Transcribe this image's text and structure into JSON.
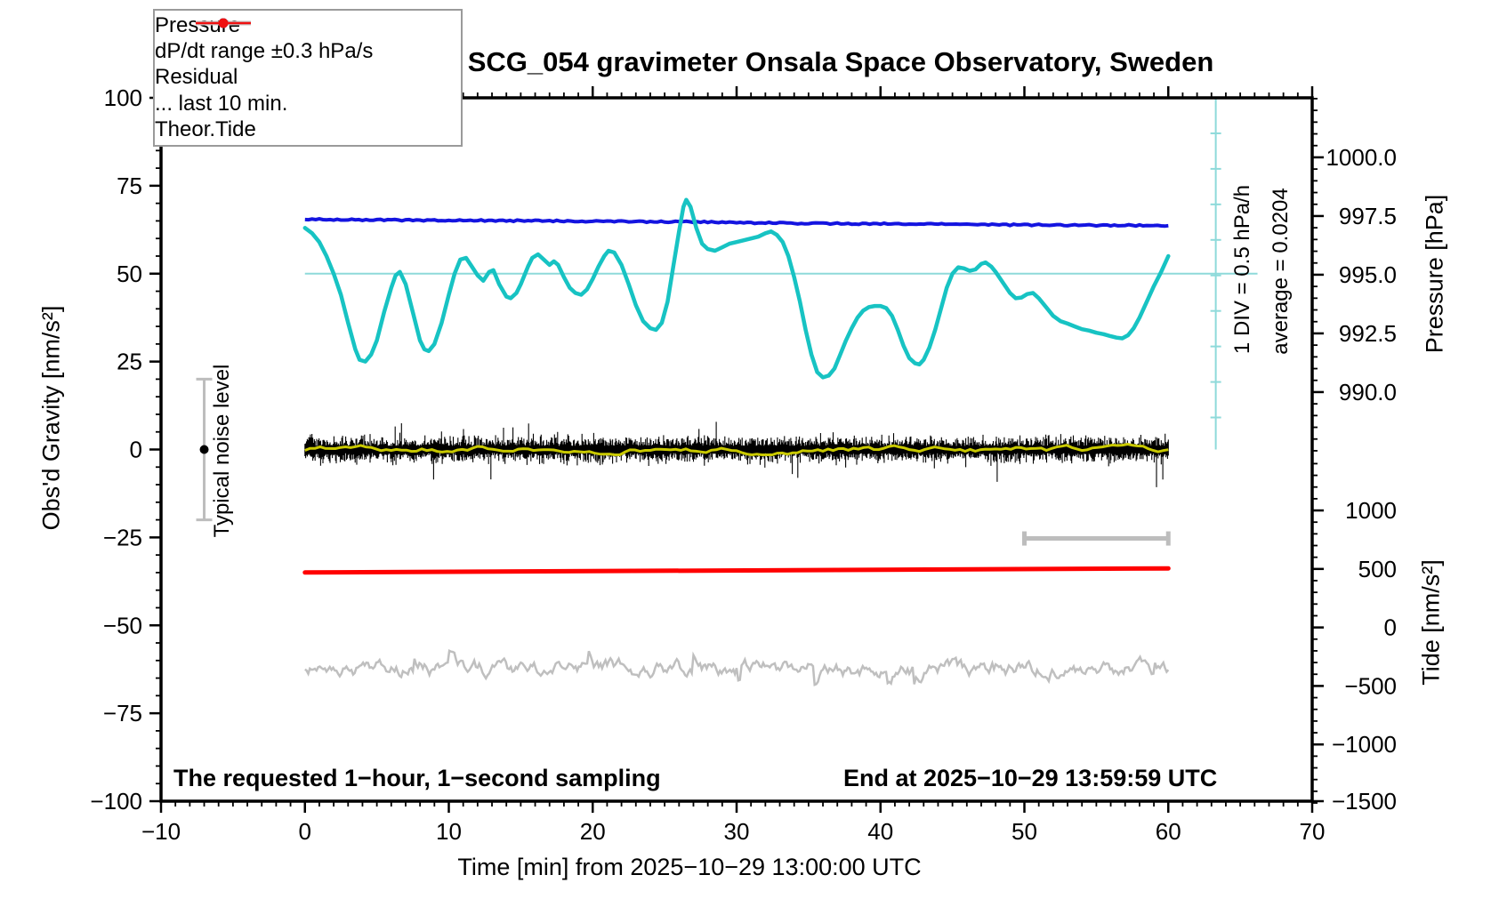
{
  "title": "SCG_054 gravimeter Onsala Space Observatory, Sweden",
  "annotations": {
    "note_left": "The requested 1−hour, 1−second sampling",
    "note_right": "End at 2025−10−29 13:59:59 UTC",
    "noise_bar_label": "Typical noise level",
    "div_label": "1 DIV = 0.5 hPa/h",
    "avg_label": "average = 0.0204"
  },
  "legend": {
    "entries": [
      {
        "label": "Pressure",
        "color": "#1a1ae8",
        "marker": true,
        "weight": 2.5
      },
      {
        "label": "dP/dt range ±0.3 hPa/s",
        "color": "#10c5c5",
        "marker": true,
        "weight": 2.5
      },
      {
        "label": "Residual",
        "color": "#000000",
        "marker": false,
        "weight": 4.5
      },
      {
        "label": "... last 10 min.",
        "color": "#c6c6c6",
        "marker": false,
        "weight": 5
      },
      {
        "label": "Theor.Tide",
        "color": "#f01010",
        "marker": true,
        "weight": 2.5
      }
    ]
  },
  "chart_data": {
    "type": "line",
    "x_axis": {
      "label": "Time [min] from 2025−10−29 13:00:00 UTC",
      "min": -10,
      "max": 70,
      "major_step": 10,
      "minor_step": 1
    },
    "y_left": {
      "label": "Obs'd Gravity [nm/s²]",
      "min": -100,
      "max": 100,
      "major_step": 25,
      "minor_step": 5
    },
    "y_right_pressure": {
      "label": "Pressure [hPa]",
      "tick_labels": [
        1000.0,
        997.5,
        995.0,
        992.5,
        990.0
      ],
      "minor_step": 0.5,
      "gravity_at_995": 49.7,
      "gravity_units_per_hPa": 6.675
    },
    "y_right_tide": {
      "label": "Tide [nm/s²]",
      "tick_labels": [
        1000,
        500,
        0,
        -500,
        -1000,
        -1500
      ],
      "minor_step": 100,
      "gravity_at_zero": -50.6,
      "gravity_units_per_tide_unit": 0.03327
    },
    "series": [
      {
        "name": "pressure",
        "axis": "pressure",
        "color": "#1414e0",
        "width": 4,
        "points": [
          [
            0,
            997.36
          ],
          [
            3,
            997.34
          ],
          [
            6,
            997.33
          ],
          [
            9,
            997.32
          ],
          [
            12,
            997.31
          ],
          [
            15,
            997.3
          ],
          [
            18,
            997.29
          ],
          [
            21,
            997.27
          ],
          [
            24,
            997.26
          ],
          [
            27,
            997.25
          ],
          [
            30,
            997.22
          ],
          [
            33,
            997.2
          ],
          [
            36,
            997.18
          ],
          [
            39,
            997.17
          ],
          [
            42,
            997.16
          ],
          [
            45,
            997.15
          ],
          [
            48,
            997.13
          ],
          [
            51,
            997.12
          ],
          [
            54,
            997.11
          ],
          [
            57,
            997.1
          ],
          [
            60,
            997.09
          ]
        ]
      },
      {
        "name": "dpdt",
        "axis": "gravity",
        "color": "#17c3c3",
        "width": 4.5,
        "note": "dP/dt plotted on left-axis units; centerline 50 = 0, legend range ±0.3 hPa/s",
        "points": [
          [
            0,
            63
          ],
          [
            0.5,
            61.5
          ],
          [
            1,
            59
          ],
          [
            1.5,
            55
          ],
          [
            2,
            50
          ],
          [
            2.5,
            44
          ],
          [
            3,
            36
          ],
          [
            3.5,
            28.5
          ],
          [
            3.8,
            25.5
          ],
          [
            4.2,
            25
          ],
          [
            4.6,
            27
          ],
          [
            5,
            31
          ],
          [
            5.5,
            39
          ],
          [
            6,
            46
          ],
          [
            6.3,
            49.5
          ],
          [
            6.6,
            50.5
          ],
          [
            7,
            47
          ],
          [
            7.5,
            39
          ],
          [
            8,
            31
          ],
          [
            8.3,
            28.5
          ],
          [
            8.6,
            28
          ],
          [
            9,
            30
          ],
          [
            9.5,
            36
          ],
          [
            10,
            44
          ],
          [
            10.4,
            50
          ],
          [
            10.8,
            54
          ],
          [
            11.2,
            54.5
          ],
          [
            11.6,
            52
          ],
          [
            12,
            49.5
          ],
          [
            12.4,
            48
          ],
          [
            12.8,
            50.5
          ],
          [
            13.1,
            51
          ],
          [
            13.5,
            47
          ],
          [
            14,
            43.5
          ],
          [
            14.3,
            43
          ],
          [
            14.7,
            44.5
          ],
          [
            15,
            47
          ],
          [
            15.5,
            52
          ],
          [
            15.8,
            54.5
          ],
          [
            16.2,
            55.5
          ],
          [
            16.6,
            54
          ],
          [
            17,
            52.5
          ],
          [
            17.3,
            53.5
          ],
          [
            17.6,
            52.5
          ],
          [
            18,
            49
          ],
          [
            18.4,
            46
          ],
          [
            18.8,
            44.5
          ],
          [
            19.2,
            44
          ],
          [
            19.6,
            45.5
          ],
          [
            20,
            48.5
          ],
          [
            20.4,
            52
          ],
          [
            20.8,
            55
          ],
          [
            21.1,
            56.5
          ],
          [
            21.5,
            56
          ],
          [
            22,
            52.5
          ],
          [
            22.5,
            47
          ],
          [
            23,
            41
          ],
          [
            23.5,
            36.5
          ],
          [
            24,
            34.5
          ],
          [
            24.4,
            34
          ],
          [
            24.8,
            36
          ],
          [
            25.2,
            42
          ],
          [
            25.6,
            52
          ],
          [
            26,
            62
          ],
          [
            26.3,
            69
          ],
          [
            26.5,
            71
          ],
          [
            26.8,
            69
          ],
          [
            27.2,
            63
          ],
          [
            27.6,
            58.5
          ],
          [
            28,
            57
          ],
          [
            28.5,
            56.5
          ],
          [
            29,
            57.5
          ],
          [
            29.5,
            58.5
          ],
          [
            30,
            59
          ],
          [
            30.5,
            59.5
          ],
          [
            31,
            60
          ],
          [
            31.5,
            60.5
          ],
          [
            32,
            61.5
          ],
          [
            32.4,
            62
          ],
          [
            32.8,
            61
          ],
          [
            33.2,
            59
          ],
          [
            33.6,
            55
          ],
          [
            34,
            49
          ],
          [
            34.4,
            42
          ],
          [
            34.8,
            34
          ],
          [
            35.2,
            27
          ],
          [
            35.6,
            22
          ],
          [
            36,
            20.5
          ],
          [
            36.4,
            21
          ],
          [
            36.8,
            23
          ],
          [
            37.2,
            27
          ],
          [
            37.6,
            31
          ],
          [
            38,
            34.5
          ],
          [
            38.4,
            37.5
          ],
          [
            38.8,
            39.5
          ],
          [
            39.2,
            40.5
          ],
          [
            39.6,
            40.8
          ],
          [
            40,
            40.8
          ],
          [
            40.4,
            40.2
          ],
          [
            40.8,
            38
          ],
          [
            41.2,
            34
          ],
          [
            41.6,
            29.5
          ],
          [
            42,
            26
          ],
          [
            42.4,
            24.5
          ],
          [
            42.7,
            24.2
          ],
          [
            43,
            25.5
          ],
          [
            43.4,
            29
          ],
          [
            43.8,
            34
          ],
          [
            44.2,
            40
          ],
          [
            44.6,
            46
          ],
          [
            45,
            50
          ],
          [
            45.4,
            51.8
          ],
          [
            45.8,
            51.5
          ],
          [
            46.2,
            50.8
          ],
          [
            46.6,
            51.2
          ],
          [
            47,
            52.8
          ],
          [
            47.3,
            53.2
          ],
          [
            47.7,
            52
          ],
          [
            48,
            50.5
          ],
          [
            48.5,
            47.5
          ],
          [
            49,
            44.5
          ],
          [
            49.4,
            43
          ],
          [
            49.8,
            43.2
          ],
          [
            50.2,
            44.2
          ],
          [
            50.6,
            44.5
          ],
          [
            51,
            43
          ],
          [
            51.5,
            40.5
          ],
          [
            52,
            38
          ],
          [
            52.5,
            36.5
          ],
          [
            53,
            35.8
          ],
          [
            53.5,
            35
          ],
          [
            54,
            34.2
          ],
          [
            54.5,
            33.8
          ],
          [
            55,
            33.2
          ],
          [
            55.5,
            32.8
          ],
          [
            56,
            32.2
          ],
          [
            56.4,
            31.8
          ],
          [
            56.8,
            31.6
          ],
          [
            57.2,
            32.5
          ],
          [
            57.6,
            34.5
          ],
          [
            58,
            37.5
          ],
          [
            58.5,
            42
          ],
          [
            59,
            46.5
          ],
          [
            59.5,
            50.5
          ],
          [
            60,
            55
          ]
        ]
      },
      {
        "name": "residual",
        "axis": "gravity",
        "color": "#000000",
        "width": 1,
        "noise": {
          "t_start": 0,
          "t_end": 60,
          "center": 0,
          "typical_amplitude": 4,
          "spike_amplitude": 12,
          "seed": 7,
          "strokes": 1100
        }
      },
      {
        "name": "residual_smoothed",
        "axis": "gravity",
        "color": "#c9c900",
        "width": 3,
        "noise": {
          "t_start": 0,
          "t_end": 60,
          "center": 0,
          "typical_amplitude": 1.2,
          "seed": 3,
          "strokes": 170
        }
      },
      {
        "name": "last_10_min",
        "axis": "gravity",
        "color": "#bfbfbf",
        "width": 2.5,
        "noise": {
          "t_start": 0,
          "t_end": 60,
          "center": -62.5,
          "typical_amplitude": 6,
          "spike_amplitude": 11,
          "seed": 11,
          "strokes": 520
        }
      },
      {
        "name": "theor_tide",
        "axis": "tide",
        "color": "#ff0000",
        "width": 5,
        "points": [
          [
            0,
            470
          ],
          [
            60,
            505
          ]
        ]
      }
    ],
    "extras": {
      "noise_errorbar": {
        "t": -7,
        "center_gravity": 0,
        "half_range_gravity": 20,
        "color": "#bdbdbd",
        "dot_color": "#000000"
      },
      "duration_bar": {
        "t1": 50,
        "t2": 60,
        "gravity": -25.3,
        "color": "#bdbdbd"
      },
      "dpdt_zero_line": {
        "gravity": 50,
        "t1": 0,
        "t2": 66.2,
        "color": "#8edada"
      },
      "div_scale_bar": {
        "t": 63.3,
        "gravity_top": 100,
        "gravity_bottom": 0,
        "tick_step_gravity": 10.1,
        "color": "#8edada"
      }
    }
  }
}
